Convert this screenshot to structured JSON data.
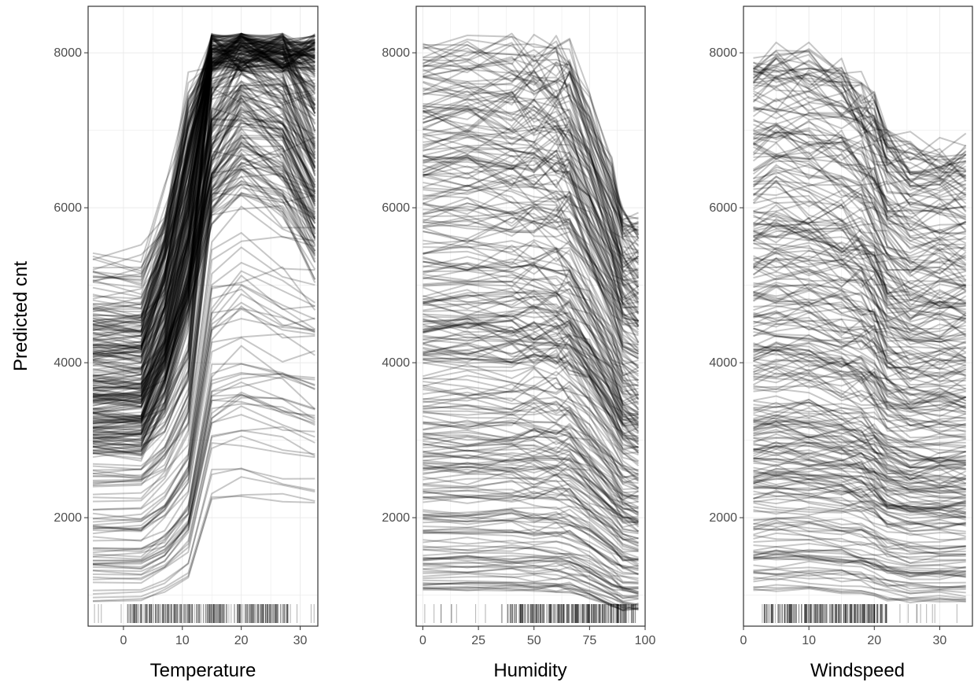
{
  "figure": {
    "ylabel": "Predicted cnt",
    "colors": {
      "lines": "#000000",
      "grid": "#ebebeb",
      "panel_border": "#333333",
      "tick_text": "#4d4d4d"
    }
  },
  "chart_data": [
    {
      "type": "line",
      "title": "",
      "xlabel": "Temperature",
      "ylabel": "Predicted cnt",
      "xlim": [
        -6,
        33
      ],
      "ylim": [
        600,
        8600
      ],
      "x_ticks": [
        0,
        10,
        20,
        30
      ],
      "y_ticks": [
        2000,
        4000,
        6000,
        8000
      ],
      "grid": true,
      "rug": true,
      "line_opacity": 0.22,
      "curve_grid_x": [
        -5.2,
        3,
        7,
        11,
        15,
        20,
        27,
        32.5
      ],
      "curve_shapes": [
        {
          "label": "low",
          "start": [
            900,
            5450
          ],
          "factors": [
            1,
            1,
            1.12,
            1.35,
            2.45,
            2.55,
            2.45,
            2.35
          ],
          "weight": 0.45
        },
        {
          "label": "mid",
          "start": [
            2800,
            4700
          ],
          "factors": [
            1,
            1,
            1.22,
            1.6,
            2.05,
            2.2,
            2.1,
            1.85
          ],
          "weight": 0.55
        }
      ],
      "curve_count": 320,
      "rug_range": [
        -5.2,
        32.5
      ],
      "rug_dense": [
        0.5,
        28
      ],
      "rug_count": 300
    },
    {
      "type": "line",
      "title": "",
      "xlabel": "Humidity",
      "ylabel": "",
      "xlim": [
        -3,
        100
      ],
      "ylim": [
        600,
        8600
      ],
      "x_ticks": [
        0,
        25,
        50,
        75,
        100
      ],
      "y_ticks": [
        2000,
        4000,
        6000,
        8000
      ],
      "grid": true,
      "rug": true,
      "line_opacity": 0.22,
      "curve_grid_x": [
        0,
        20,
        40,
        50,
        60,
        66,
        75,
        85,
        90,
        97
      ],
      "curve_shapes": [
        {
          "label": "flat-then-drop",
          "start": [
            1050,
            8200
          ],
          "factors": [
            1,
            1,
            1,
            0.995,
            0.99,
            0.98,
            0.9,
            0.8,
            0.74,
            0.72
          ],
          "weight": 1
        }
      ],
      "curve_count": 320,
      "rug_range": [
        0,
        97
      ],
      "rug_dense": [
        38,
        95
      ],
      "rug_count": 300
    },
    {
      "type": "line",
      "title": "",
      "xlabel": "Windspeed",
      "ylabel": "",
      "xlim": [
        0,
        35
      ],
      "ylim": [
        600,
        8600
      ],
      "x_ticks": [
        0,
        10,
        20,
        30
      ],
      "y_ticks": [
        2000,
        4000,
        6000,
        8000
      ],
      "grid": true,
      "rug": true,
      "line_opacity": 0.22,
      "curve_grid_x": [
        1.5,
        5,
        10,
        15,
        18,
        20,
        22,
        25.5,
        30,
        34
      ],
      "curve_shapes": [
        {
          "label": "gentle-then-drop",
          "start": [
            1050,
            7950
          ],
          "factors": [
            1,
            1.01,
            1.0,
            0.98,
            0.96,
            0.93,
            0.88,
            0.85,
            0.85,
            0.85
          ],
          "weight": 1
        }
      ],
      "curve_count": 320,
      "rug_range": [
        1.5,
        34
      ],
      "rug_dense": [
        3,
        22
      ],
      "rug_count": 280
    }
  ]
}
